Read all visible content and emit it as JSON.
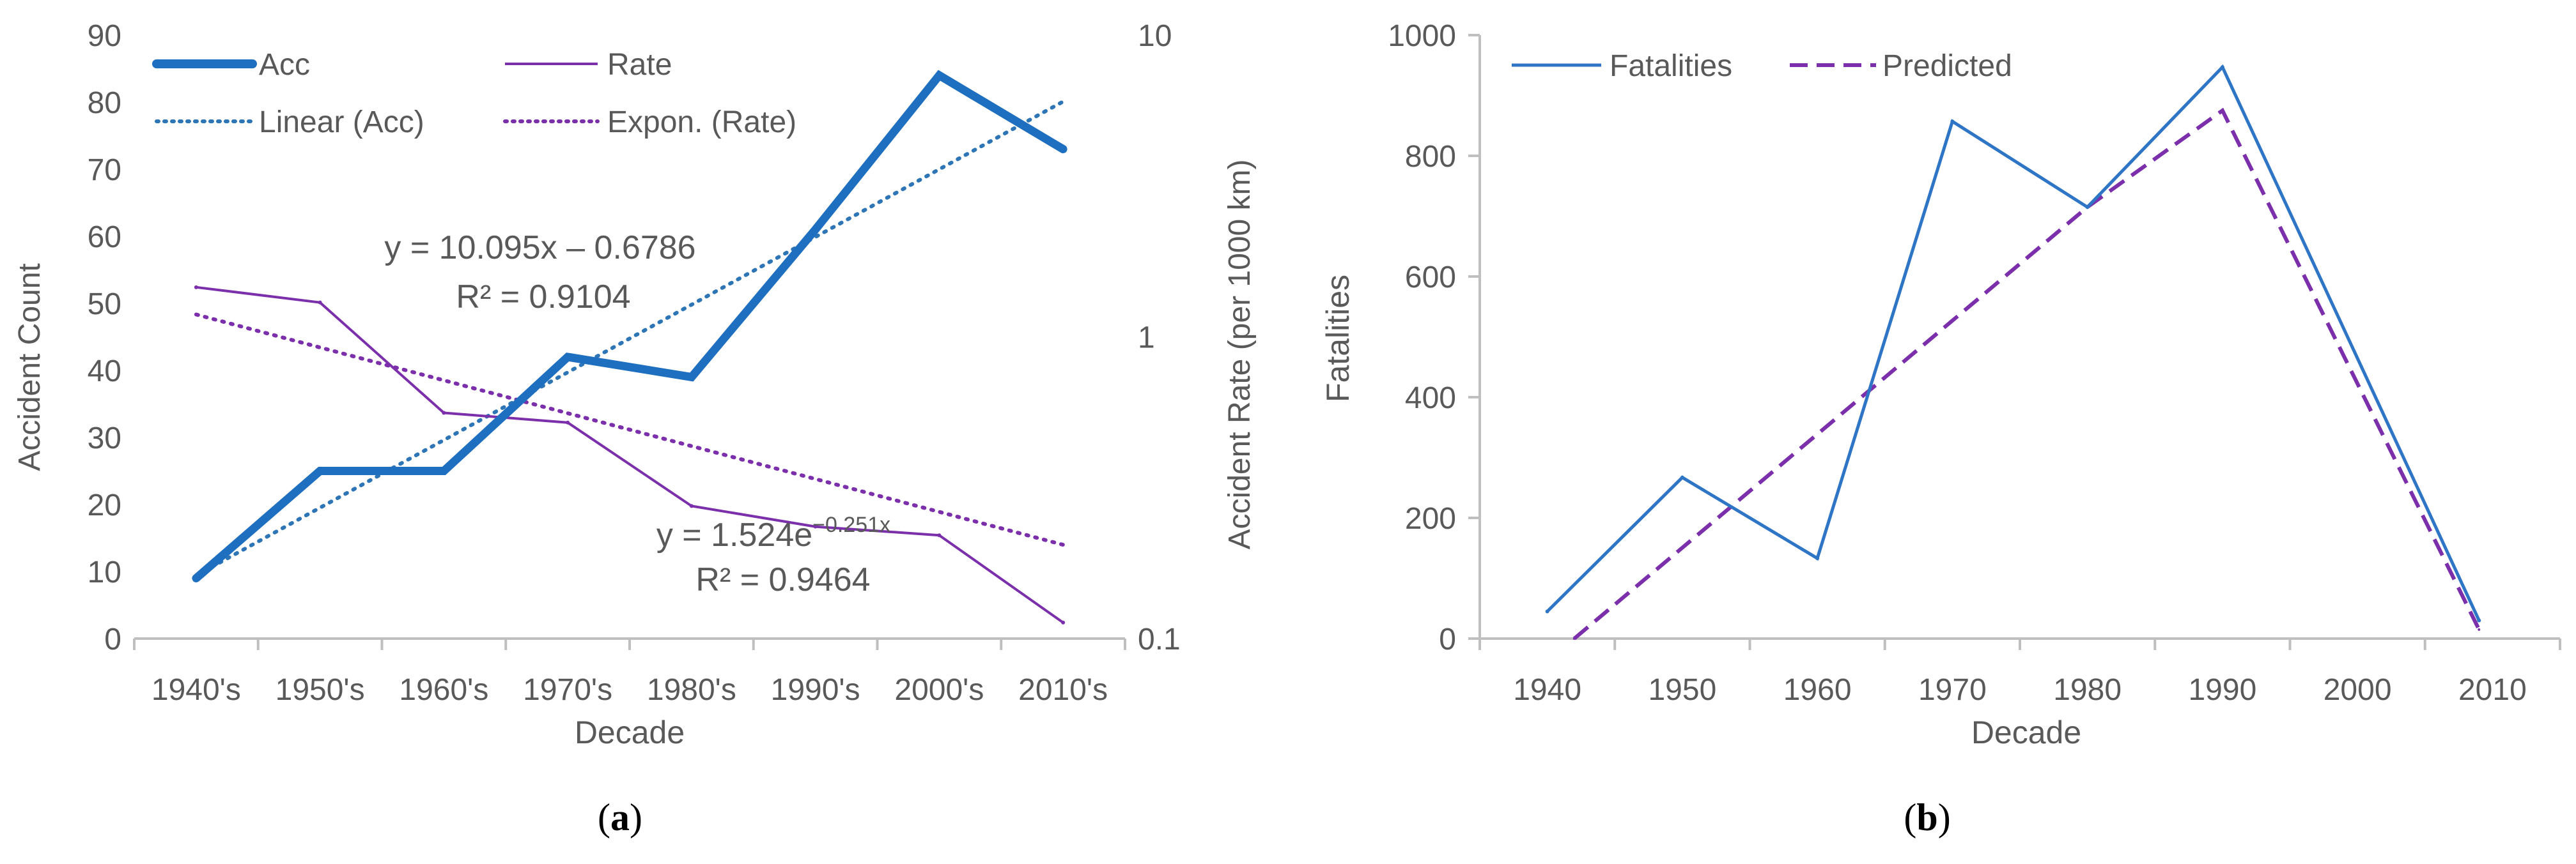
{
  "chart_data": [
    {
      "type": "line",
      "panel_label": "(a)",
      "panel_letter": "a",
      "categories": [
        "1940's",
        "1950's",
        "1960's",
        "1970's",
        "1980's",
        "1990's",
        "2000's",
        "2010's"
      ],
      "xlabel": "Decade",
      "ylabel": "Accident Count",
      "ylabel_right": "Accident Rate (per 1000 km)",
      "ylim": [
        0,
        90
      ],
      "y_ticks": [
        0,
        10,
        20,
        30,
        40,
        50,
        60,
        70,
        80,
        90
      ],
      "ylim_right": [
        0.1,
        10
      ],
      "y_right_scale": "log",
      "y_right_ticks": [
        "0.1",
        "1",
        "10"
      ],
      "series": [
        {
          "name": "Acc",
          "axis": "left",
          "style": "solid-thick",
          "color": "#1F6FC0",
          "values": [
            9,
            25,
            25,
            42,
            39,
            61,
            84,
            73
          ]
        },
        {
          "name": "Rate",
          "axis": "right",
          "style": "solid",
          "color": "#7B2FAA",
          "values": [
            1.46,
            1.3,
            0.56,
            0.52,
            0.275,
            0.235,
            0.22,
            0.113
          ]
        },
        {
          "name": "Linear (Acc)",
          "axis": "left",
          "style": "dotted",
          "color": "#2E75B6",
          "trendline": {
            "slope": 10.095,
            "intercept": -0.6786
          }
        },
        {
          "name": "Expon. (Rate)",
          "axis": "right",
          "style": "dotted",
          "color": "#7B2FAA",
          "trendline": {
            "coef": 1.524,
            "exp": -0.251
          }
        }
      ],
      "annotations": [
        {
          "text": "y = 10.095x – 0.6786"
        },
        {
          "text": "R² = 0.9104"
        },
        {
          "text": "y = 1.524e",
          "superscript": "−0.251x"
        },
        {
          "text": "R² = 0.9464"
        }
      ],
      "legend": "top-left, two columns"
    },
    {
      "type": "line",
      "panel_label": "(b)",
      "panel_letter": "b",
      "categories": [
        "1940",
        "1950",
        "1960",
        "1970",
        "1980",
        "1990",
        "2000",
        "2010"
      ],
      "xlabel": "Decade",
      "ylabel": "Fatalities",
      "ylim": [
        0,
        1000
      ],
      "y_ticks": [
        0,
        200,
        400,
        600,
        800,
        1000
      ],
      "series": [
        {
          "name": "Fatalities",
          "style": "solid",
          "color": "#2E75C6",
          "points": [
            [
              1940,
              45
            ],
            [
              1950,
              267
            ],
            [
              1960,
              133
            ],
            [
              1970,
              857
            ],
            [
              1980,
              715
            ],
            [
              1990,
              947
            ],
            [
              2009,
              30
            ]
          ]
        },
        {
          "name": "Predicted",
          "style": "dashed",
          "color": "#7B2FAA",
          "points": [
            [
              1942,
              0
            ],
            [
              1980,
              715
            ],
            [
              1990,
              875
            ],
            [
              2009,
              15
            ]
          ]
        }
      ],
      "legend": "top-left"
    }
  ]
}
